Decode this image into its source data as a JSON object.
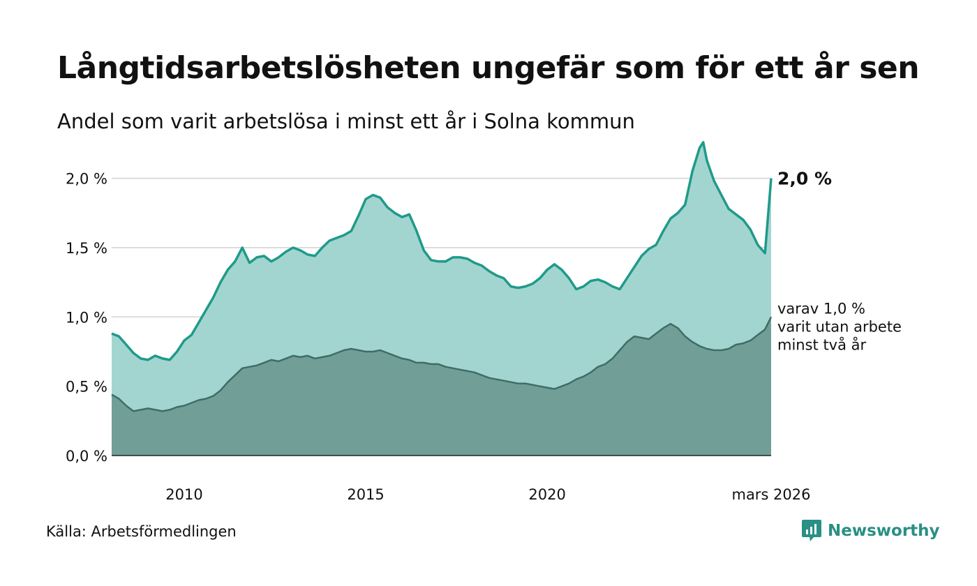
{
  "title": "Långtidsarbetslösheten ungefär som för ett år sen",
  "subtitle": "Andel som varit arbetslösa i minst ett år i Solna kommun",
  "source": "Källa: Arbetsförmedlingen",
  "brand": "Newsworthy",
  "colors": {
    "main_line": "#1f9a8a",
    "main_fill": "#a3d5d0",
    "sub_line": "#3f6d66",
    "sub_fill": "#729e98",
    "grid": "#dcdcdc",
    "brand": "#2a8f85"
  },
  "chart_data": {
    "type": "area",
    "ylim": [
      0,
      2.3
    ],
    "xlim": [
      2008.0,
      2026.17
    ],
    "y_ticks": [
      {
        "value": 0.0,
        "label": "0,0 %"
      },
      {
        "value": 0.5,
        "label": "0,5 %"
      },
      {
        "value": 1.0,
        "label": "1,0 %"
      },
      {
        "value": 1.5,
        "label": "1,5 %"
      },
      {
        "value": 2.0,
        "label": "2,0 %"
      }
    ],
    "x_ticks": [
      {
        "value": 2010.0,
        "label": "2010"
      },
      {
        "value": 2015.0,
        "label": "2015"
      },
      {
        "value": 2020.0,
        "label": "2020"
      },
      {
        "value": 2026.17,
        "label": "mars 2026"
      }
    ],
    "series": [
      {
        "name": "minst ett år",
        "end_label": "2,0 %",
        "points": [
          [
            2008.0,
            0.88
          ],
          [
            2008.2,
            0.86
          ],
          [
            2008.4,
            0.8
          ],
          [
            2008.6,
            0.74
          ],
          [
            2008.8,
            0.7
          ],
          [
            2009.0,
            0.69
          ],
          [
            2009.2,
            0.72
          ],
          [
            2009.4,
            0.7
          ],
          [
            2009.6,
            0.69
          ],
          [
            2009.8,
            0.75
          ],
          [
            2010.0,
            0.83
          ],
          [
            2010.2,
            0.87
          ],
          [
            2010.4,
            0.96
          ],
          [
            2010.6,
            1.05
          ],
          [
            2010.8,
            1.14
          ],
          [
            2011.0,
            1.25
          ],
          [
            2011.2,
            1.34
          ],
          [
            2011.4,
            1.4
          ],
          [
            2011.6,
            1.5
          ],
          [
            2011.8,
            1.39
          ],
          [
            2012.0,
            1.43
          ],
          [
            2012.2,
            1.44
          ],
          [
            2012.4,
            1.4
          ],
          [
            2012.6,
            1.43
          ],
          [
            2012.8,
            1.47
          ],
          [
            2013.0,
            1.5
          ],
          [
            2013.2,
            1.48
          ],
          [
            2013.4,
            1.45
          ],
          [
            2013.6,
            1.44
          ],
          [
            2013.8,
            1.5
          ],
          [
            2014.0,
            1.55
          ],
          [
            2014.2,
            1.57
          ],
          [
            2014.4,
            1.59
          ],
          [
            2014.6,
            1.62
          ],
          [
            2014.8,
            1.73
          ],
          [
            2015.0,
            1.85
          ],
          [
            2015.2,
            1.88
          ],
          [
            2015.4,
            1.86
          ],
          [
            2015.6,
            1.79
          ],
          [
            2015.8,
            1.75
          ],
          [
            2016.0,
            1.72
          ],
          [
            2016.2,
            1.74
          ],
          [
            2016.4,
            1.62
          ],
          [
            2016.6,
            1.48
          ],
          [
            2016.8,
            1.41
          ],
          [
            2017.0,
            1.4
          ],
          [
            2017.2,
            1.4
          ],
          [
            2017.4,
            1.43
          ],
          [
            2017.6,
            1.43
          ],
          [
            2017.8,
            1.42
          ],
          [
            2018.0,
            1.39
          ],
          [
            2018.2,
            1.37
          ],
          [
            2018.4,
            1.33
          ],
          [
            2018.6,
            1.3
          ],
          [
            2018.8,
            1.28
          ],
          [
            2019.0,
            1.22
          ],
          [
            2019.2,
            1.21
          ],
          [
            2019.4,
            1.22
          ],
          [
            2019.6,
            1.24
          ],
          [
            2019.8,
            1.28
          ],
          [
            2020.0,
            1.34
          ],
          [
            2020.2,
            1.38
          ],
          [
            2020.4,
            1.34
          ],
          [
            2020.6,
            1.28
          ],
          [
            2020.8,
            1.2
          ],
          [
            2021.0,
            1.22
          ],
          [
            2021.2,
            1.26
          ],
          [
            2021.4,
            1.27
          ],
          [
            2021.6,
            1.25
          ],
          [
            2021.8,
            1.22
          ],
          [
            2022.0,
            1.2
          ],
          [
            2022.2,
            1.28
          ],
          [
            2022.4,
            1.36
          ],
          [
            2022.6,
            1.44
          ],
          [
            2022.8,
            1.49
          ],
          [
            2023.0,
            1.52
          ],
          [
            2023.2,
            1.62
          ],
          [
            2023.4,
            1.71
          ],
          [
            2023.6,
            1.75
          ],
          [
            2023.8,
            1.81
          ],
          [
            2024.0,
            2.05
          ],
          [
            2024.2,
            2.22
          ],
          [
            2024.3,
            2.26
          ],
          [
            2024.4,
            2.13
          ],
          [
            2024.6,
            1.98
          ],
          [
            2024.8,
            1.88
          ],
          [
            2025.0,
            1.78
          ],
          [
            2025.2,
            1.74
          ],
          [
            2025.4,
            1.7
          ],
          [
            2025.6,
            1.63
          ],
          [
            2025.8,
            1.52
          ],
          [
            2026.0,
            1.46
          ],
          [
            2026.17,
            2.0
          ]
        ]
      },
      {
        "name": "minst två år",
        "end_label_lines": [
          "varav 1,0 %",
          "varit utan arbete",
          "minst två år"
        ],
        "points": [
          [
            2008.0,
            0.44
          ],
          [
            2008.2,
            0.41
          ],
          [
            2008.4,
            0.36
          ],
          [
            2008.6,
            0.32
          ],
          [
            2008.8,
            0.33
          ],
          [
            2009.0,
            0.34
          ],
          [
            2009.2,
            0.33
          ],
          [
            2009.4,
            0.32
          ],
          [
            2009.6,
            0.33
          ],
          [
            2009.8,
            0.35
          ],
          [
            2010.0,
            0.36
          ],
          [
            2010.2,
            0.38
          ],
          [
            2010.4,
            0.4
          ],
          [
            2010.6,
            0.41
          ],
          [
            2010.8,
            0.43
          ],
          [
            2011.0,
            0.47
          ],
          [
            2011.2,
            0.53
          ],
          [
            2011.4,
            0.58
          ],
          [
            2011.6,
            0.63
          ],
          [
            2011.8,
            0.64
          ],
          [
            2012.0,
            0.65
          ],
          [
            2012.2,
            0.67
          ],
          [
            2012.4,
            0.69
          ],
          [
            2012.6,
            0.68
          ],
          [
            2012.8,
            0.7
          ],
          [
            2013.0,
            0.72
          ],
          [
            2013.2,
            0.71
          ],
          [
            2013.4,
            0.72
          ],
          [
            2013.6,
            0.7
          ],
          [
            2013.8,
            0.71
          ],
          [
            2014.0,
            0.72
          ],
          [
            2014.2,
            0.74
          ],
          [
            2014.4,
            0.76
          ],
          [
            2014.6,
            0.77
          ],
          [
            2014.8,
            0.76
          ],
          [
            2015.0,
            0.75
          ],
          [
            2015.2,
            0.75
          ],
          [
            2015.4,
            0.76
          ],
          [
            2015.6,
            0.74
          ],
          [
            2015.8,
            0.72
          ],
          [
            2016.0,
            0.7
          ],
          [
            2016.2,
            0.69
          ],
          [
            2016.4,
            0.67
          ],
          [
            2016.6,
            0.67
          ],
          [
            2016.8,
            0.66
          ],
          [
            2017.0,
            0.66
          ],
          [
            2017.2,
            0.64
          ],
          [
            2017.4,
            0.63
          ],
          [
            2017.6,
            0.62
          ],
          [
            2017.8,
            0.61
          ],
          [
            2018.0,
            0.6
          ],
          [
            2018.2,
            0.58
          ],
          [
            2018.4,
            0.56
          ],
          [
            2018.6,
            0.55
          ],
          [
            2018.8,
            0.54
          ],
          [
            2019.0,
            0.53
          ],
          [
            2019.2,
            0.52
          ],
          [
            2019.4,
            0.52
          ],
          [
            2019.6,
            0.51
          ],
          [
            2019.8,
            0.5
          ],
          [
            2020.0,
            0.49
          ],
          [
            2020.2,
            0.48
          ],
          [
            2020.4,
            0.5
          ],
          [
            2020.6,
            0.52
          ],
          [
            2020.8,
            0.55
          ],
          [
            2021.0,
            0.57
          ],
          [
            2021.2,
            0.6
          ],
          [
            2021.4,
            0.64
          ],
          [
            2021.6,
            0.66
          ],
          [
            2021.8,
            0.7
          ],
          [
            2022.0,
            0.76
          ],
          [
            2022.2,
            0.82
          ],
          [
            2022.4,
            0.86
          ],
          [
            2022.6,
            0.85
          ],
          [
            2022.8,
            0.84
          ],
          [
            2023.0,
            0.88
          ],
          [
            2023.2,
            0.92
          ],
          [
            2023.4,
            0.95
          ],
          [
            2023.6,
            0.92
          ],
          [
            2023.8,
            0.86
          ],
          [
            2024.0,
            0.82
          ],
          [
            2024.2,
            0.79
          ],
          [
            2024.4,
            0.77
          ],
          [
            2024.6,
            0.76
          ],
          [
            2024.8,
            0.76
          ],
          [
            2025.0,
            0.77
          ],
          [
            2025.2,
            0.8
          ],
          [
            2025.4,
            0.81
          ],
          [
            2025.6,
            0.83
          ],
          [
            2025.8,
            0.87
          ],
          [
            2026.0,
            0.91
          ],
          [
            2026.17,
            1.0
          ]
        ]
      }
    ]
  }
}
